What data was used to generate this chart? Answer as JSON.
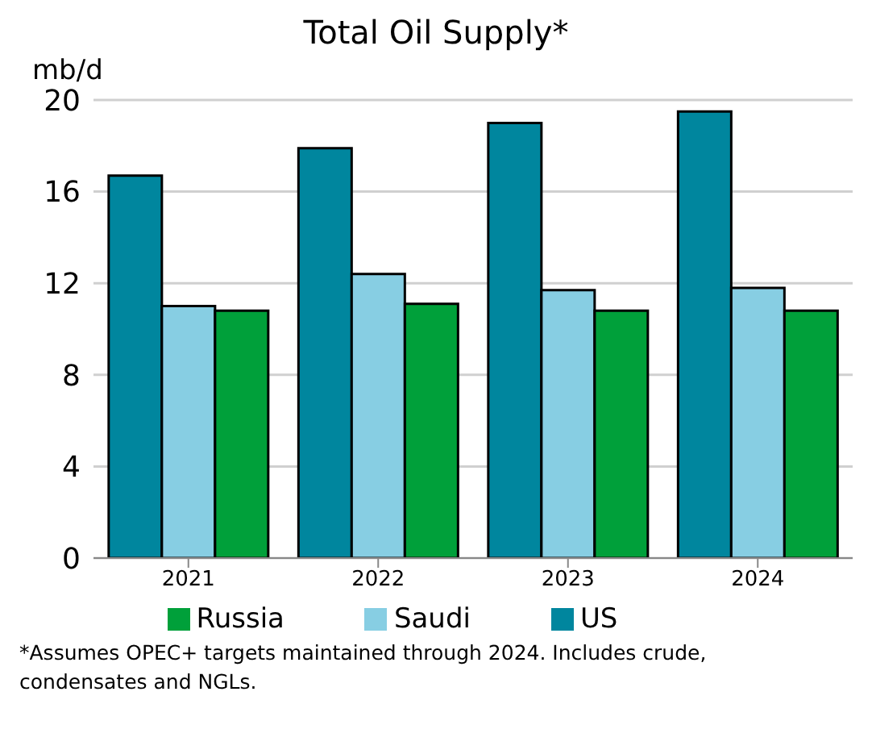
{
  "chart_data": {
    "type": "bar",
    "title": "Total Oil Supply*",
    "ylabel": "mb/d",
    "categories": [
      "2021",
      "2022",
      "2023",
      "2024"
    ],
    "series": [
      {
        "name": "US",
        "color": "#00869e",
        "values": [
          16.7,
          17.9,
          19.0,
          19.5
        ]
      },
      {
        "name": "Saudi",
        "color": "#87cee3",
        "values": [
          11.0,
          12.4,
          11.7,
          11.8
        ]
      },
      {
        "name": "Russia",
        "color": "#00a03a",
        "values": [
          10.8,
          11.1,
          10.8,
          10.8
        ]
      }
    ],
    "ylim": [
      0,
      20
    ],
    "yticks": [
      0,
      4,
      8,
      12,
      16,
      20
    ],
    "grid": "y",
    "legend": "bottom",
    "annotations": [
      "*Assumes OPEC+ targets maintained through 2024. Includes crude, condensates and NGLs."
    ]
  }
}
